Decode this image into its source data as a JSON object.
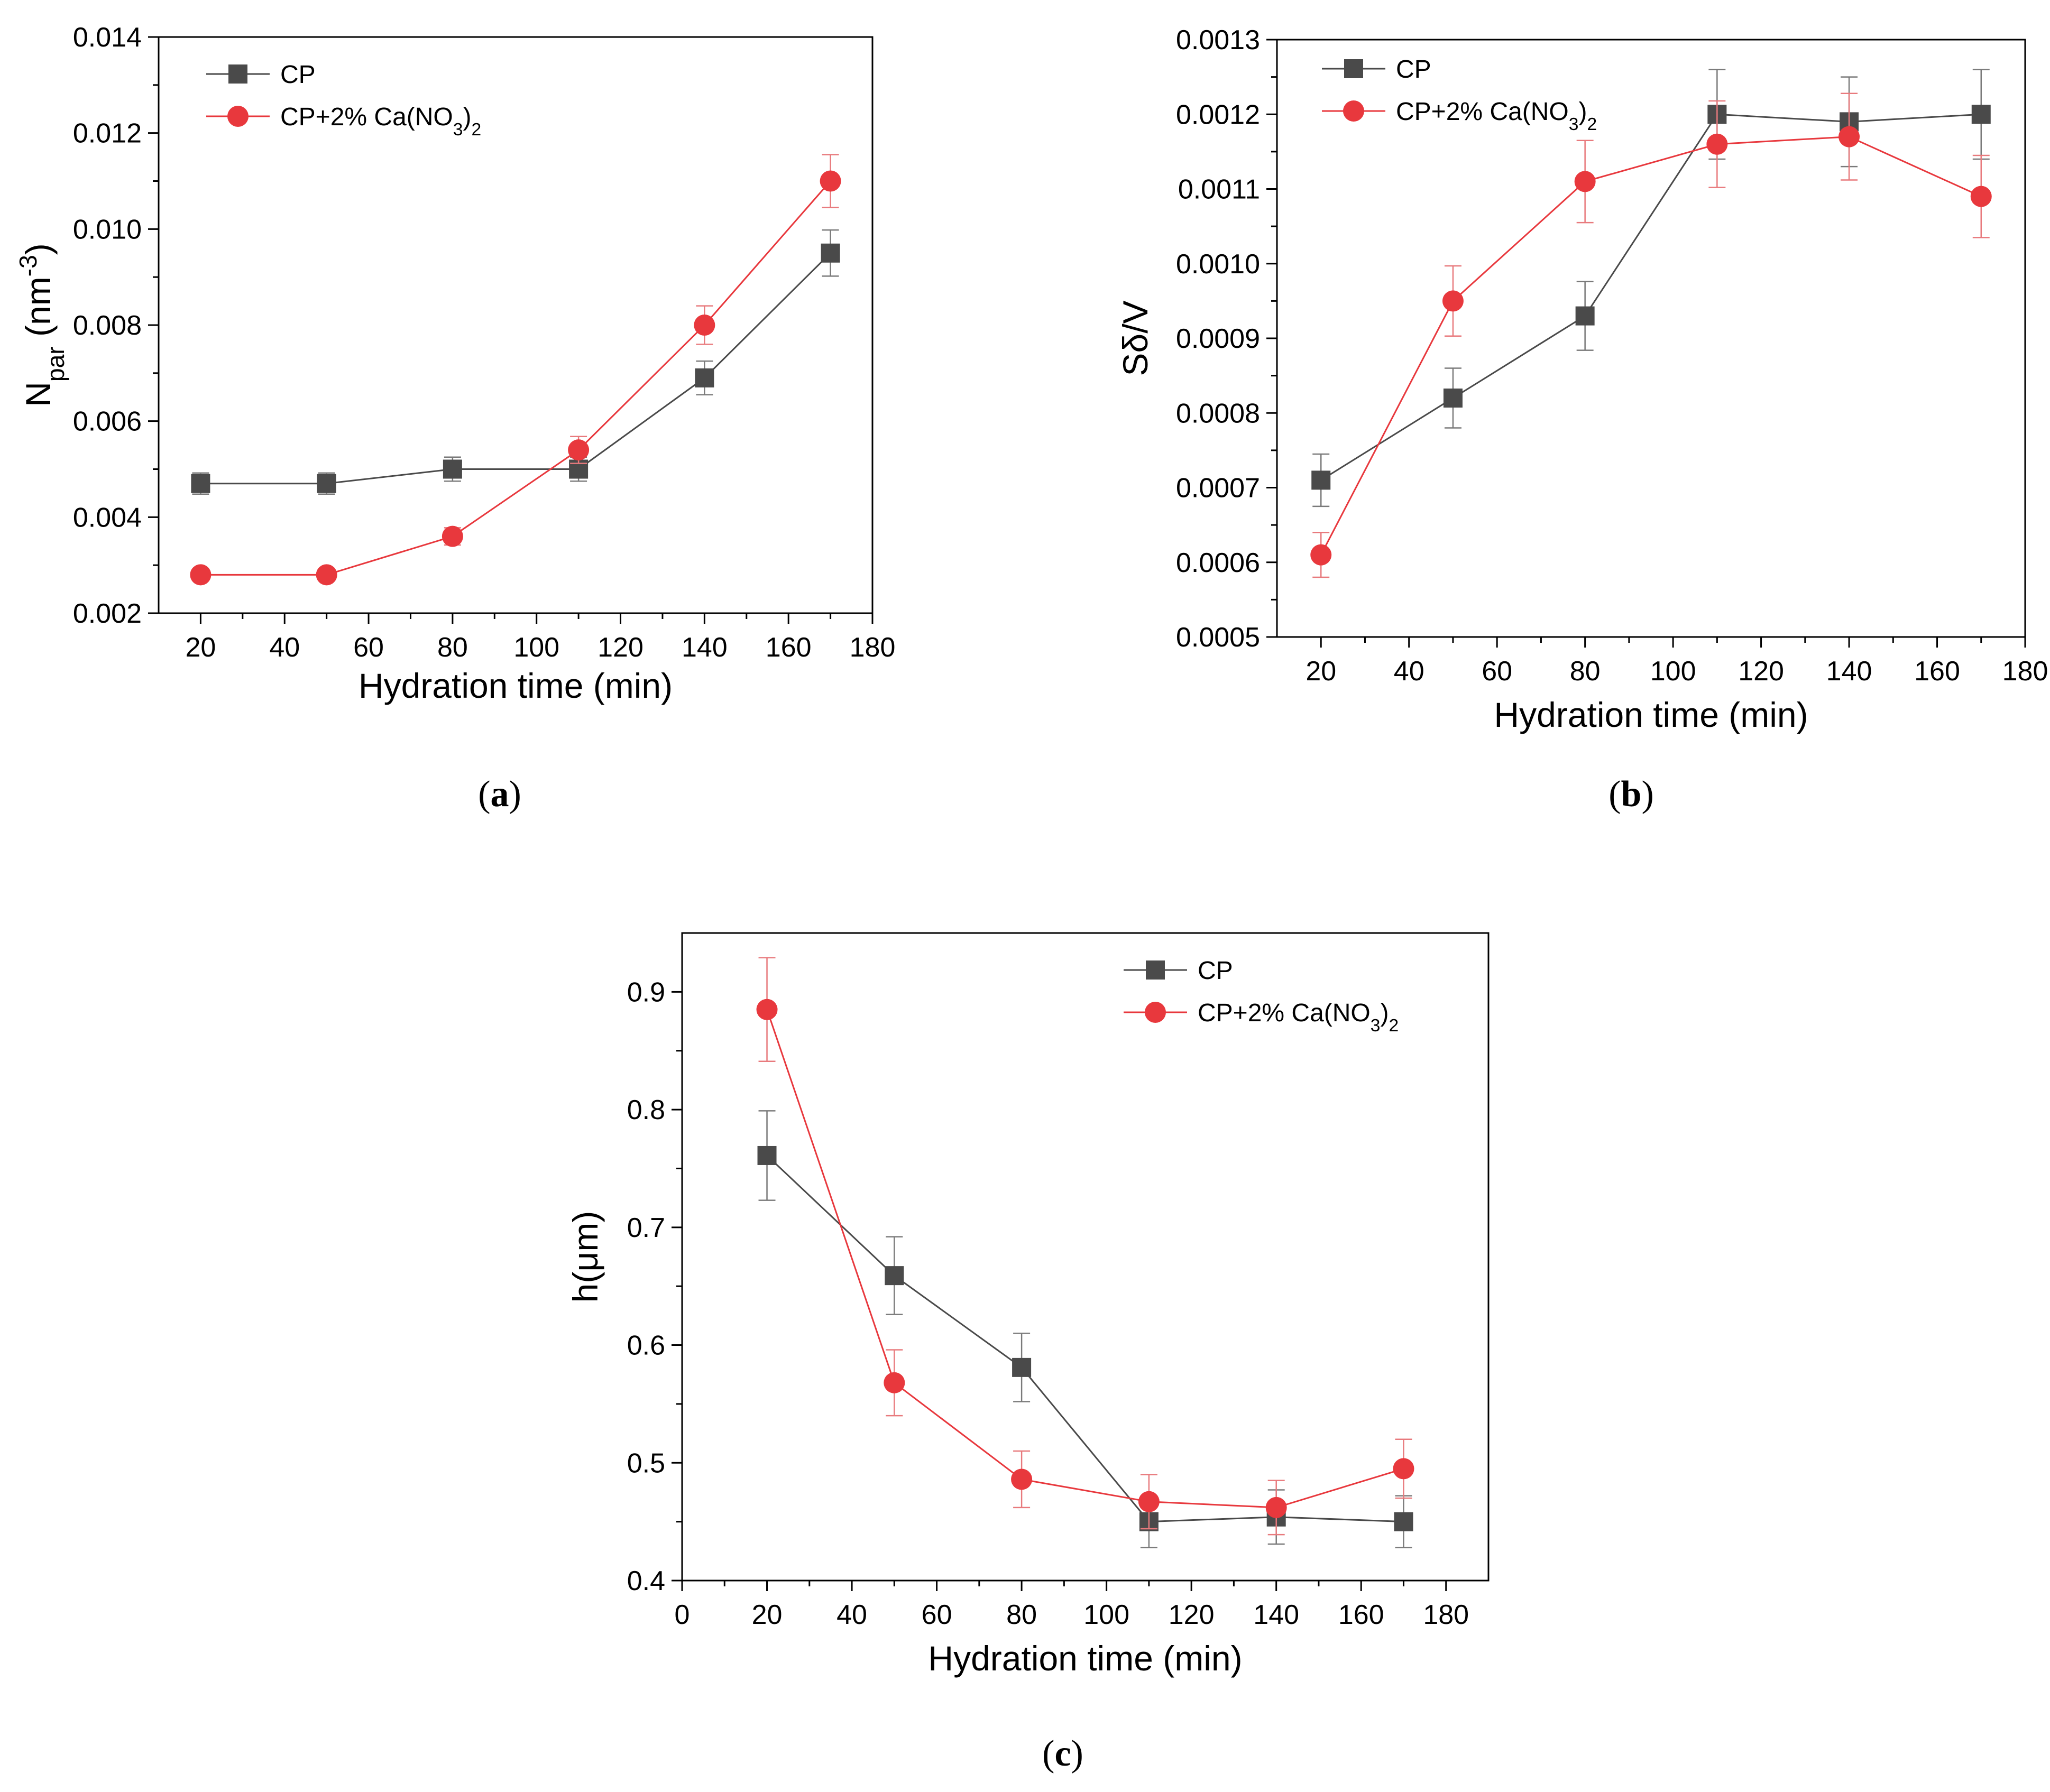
{
  "chart_data": [
    {
      "id": "a",
      "type": "line",
      "caption": "a",
      "xlabel": "Hydration time (min)",
      "ylabel": {
        "base": "N",
        "sub": "par",
        "unit_pre": " (nm",
        "unit_sup": "-3",
        "unit_post": ")"
      },
      "xlim": [
        10,
        180
      ],
      "ylim": [
        0.002,
        0.014
      ],
      "xticks": [
        20,
        40,
        60,
        80,
        100,
        120,
        140,
        160,
        180
      ],
      "yticks": [
        "0.002",
        "0.004",
        "0.006",
        "0.008",
        "0.010",
        "0.012",
        "0.014"
      ],
      "legend": {
        "position": "top-left"
      },
      "series": [
        {
          "name": "CP",
          "color": "#4a4a4a",
          "marker": "square",
          "x": [
            20,
            50,
            80,
            110,
            140,
            170
          ],
          "y": [
            0.0047,
            0.0047,
            0.005,
            0.005,
            0.0069,
            0.0095
          ],
          "err": [
            0.00022,
            0.00022,
            0.00025,
            0.00025,
            0.00035,
            0.00048
          ]
        },
        {
          "name": "CP+2% Ca(NO3)2",
          "color": "#e8383d",
          "marker": "circle",
          "x": [
            20,
            50,
            80,
            110,
            140,
            170
          ],
          "y": [
            0.0028,
            0.0028,
            0.0036,
            0.0054,
            0.008,
            0.011
          ],
          "err": [
            0.00012,
            0.00012,
            0.00018,
            0.00028,
            0.0004,
            0.00055
          ]
        }
      ]
    },
    {
      "id": "b",
      "type": "line",
      "caption": "b",
      "xlabel": "Hydration time (min)",
      "ylabel": {
        "base": "Sδ/V"
      },
      "xlim": [
        10,
        180
      ],
      "ylim": [
        0.0005,
        0.0013
      ],
      "xticks": [
        20,
        40,
        60,
        80,
        100,
        120,
        140,
        160,
        180
      ],
      "yticks": [
        "0.0005",
        "0.0006",
        "0.0007",
        "0.0008",
        "0.0009",
        "0.0010",
        "0.0011",
        "0.0012",
        "0.0013"
      ],
      "legend": {
        "position": "top-left"
      },
      "series": [
        {
          "name": "CP",
          "color": "#4a4a4a",
          "marker": "square",
          "x": [
            20,
            50,
            80,
            110,
            140,
            170
          ],
          "y": [
            0.00071,
            0.00082,
            0.00093,
            0.0012,
            0.00119,
            0.0012
          ],
          "err": [
            3.5e-05,
            4e-05,
            4.6e-05,
            6e-05,
            6e-05,
            6e-05
          ]
        },
        {
          "name": "CP+2% Ca(NO3)2",
          "color": "#e8383d",
          "marker": "circle",
          "x": [
            20,
            50,
            80,
            110,
            140,
            170
          ],
          "y": [
            0.00061,
            0.00095,
            0.00111,
            0.00116,
            0.00117,
            0.00109
          ],
          "err": [
            3e-05,
            4.7e-05,
            5.5e-05,
            5.8e-05,
            5.8e-05,
            5.5e-05
          ]
        }
      ]
    },
    {
      "id": "c",
      "type": "line",
      "caption": "c",
      "xlabel": "Hydration time (min)",
      "ylabel": {
        "base": "h(μm)"
      },
      "xlim": [
        0,
        190
      ],
      "ylim": [
        0.4,
        0.95
      ],
      "xticks": [
        0,
        20,
        40,
        60,
        80,
        100,
        120,
        140,
        160,
        180
      ],
      "yticks": [
        "0.4",
        "0.5",
        "0.6",
        "0.7",
        "0.8",
        "0.9"
      ],
      "legend": {
        "position": "top-right"
      },
      "series": [
        {
          "name": "CP",
          "color": "#4a4a4a",
          "marker": "square",
          "x": [
            20,
            50,
            80,
            110,
            140,
            170
          ],
          "y": [
            0.761,
            0.659,
            0.581,
            0.45,
            0.454,
            0.45
          ],
          "err": [
            0.038,
            0.033,
            0.029,
            0.022,
            0.023,
            0.022
          ]
        },
        {
          "name": "CP+2% Ca(NO3)2",
          "color": "#e8383d",
          "marker": "circle",
          "x": [
            20,
            50,
            80,
            110,
            140,
            170
          ],
          "y": [
            0.885,
            0.568,
            0.486,
            0.467,
            0.462,
            0.495
          ],
          "err": [
            0.044,
            0.028,
            0.024,
            0.023,
            0.023,
            0.025
          ]
        }
      ]
    }
  ]
}
